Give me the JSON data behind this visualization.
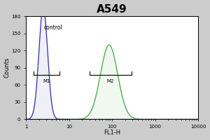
{
  "title": "A549",
  "title_fontsize": 11,
  "title_fontweight": "bold",
  "xlabel": "FL1-H",
  "ylabel": "Counts",
  "xlim": [
    1.0,
    10000.0
  ],
  "ylim": [
    0,
    180
  ],
  "yticks": [
    0,
    30,
    60,
    90,
    120,
    150,
    180
  ],
  "control_color": "#3333aa",
  "sample_color": "#44aa44",
  "control_label": "control",
  "m1_label": "M1",
  "m2_label": "M2",
  "outer_bg": "#cccccc",
  "plot_bg_color": "#ffffff",
  "control_peak_x": 2.5,
  "control_peak_std": 0.1,
  "control_peak_height": 160,
  "sample_peak_x": 85,
  "sample_peak_std": 0.2,
  "sample_peak_height": 130,
  "m1_x1": 1.5,
  "m1_x2": 6.0,
  "m1_y": 78,
  "m2_x1": 30,
  "m2_x2": 280,
  "m2_y": 78
}
